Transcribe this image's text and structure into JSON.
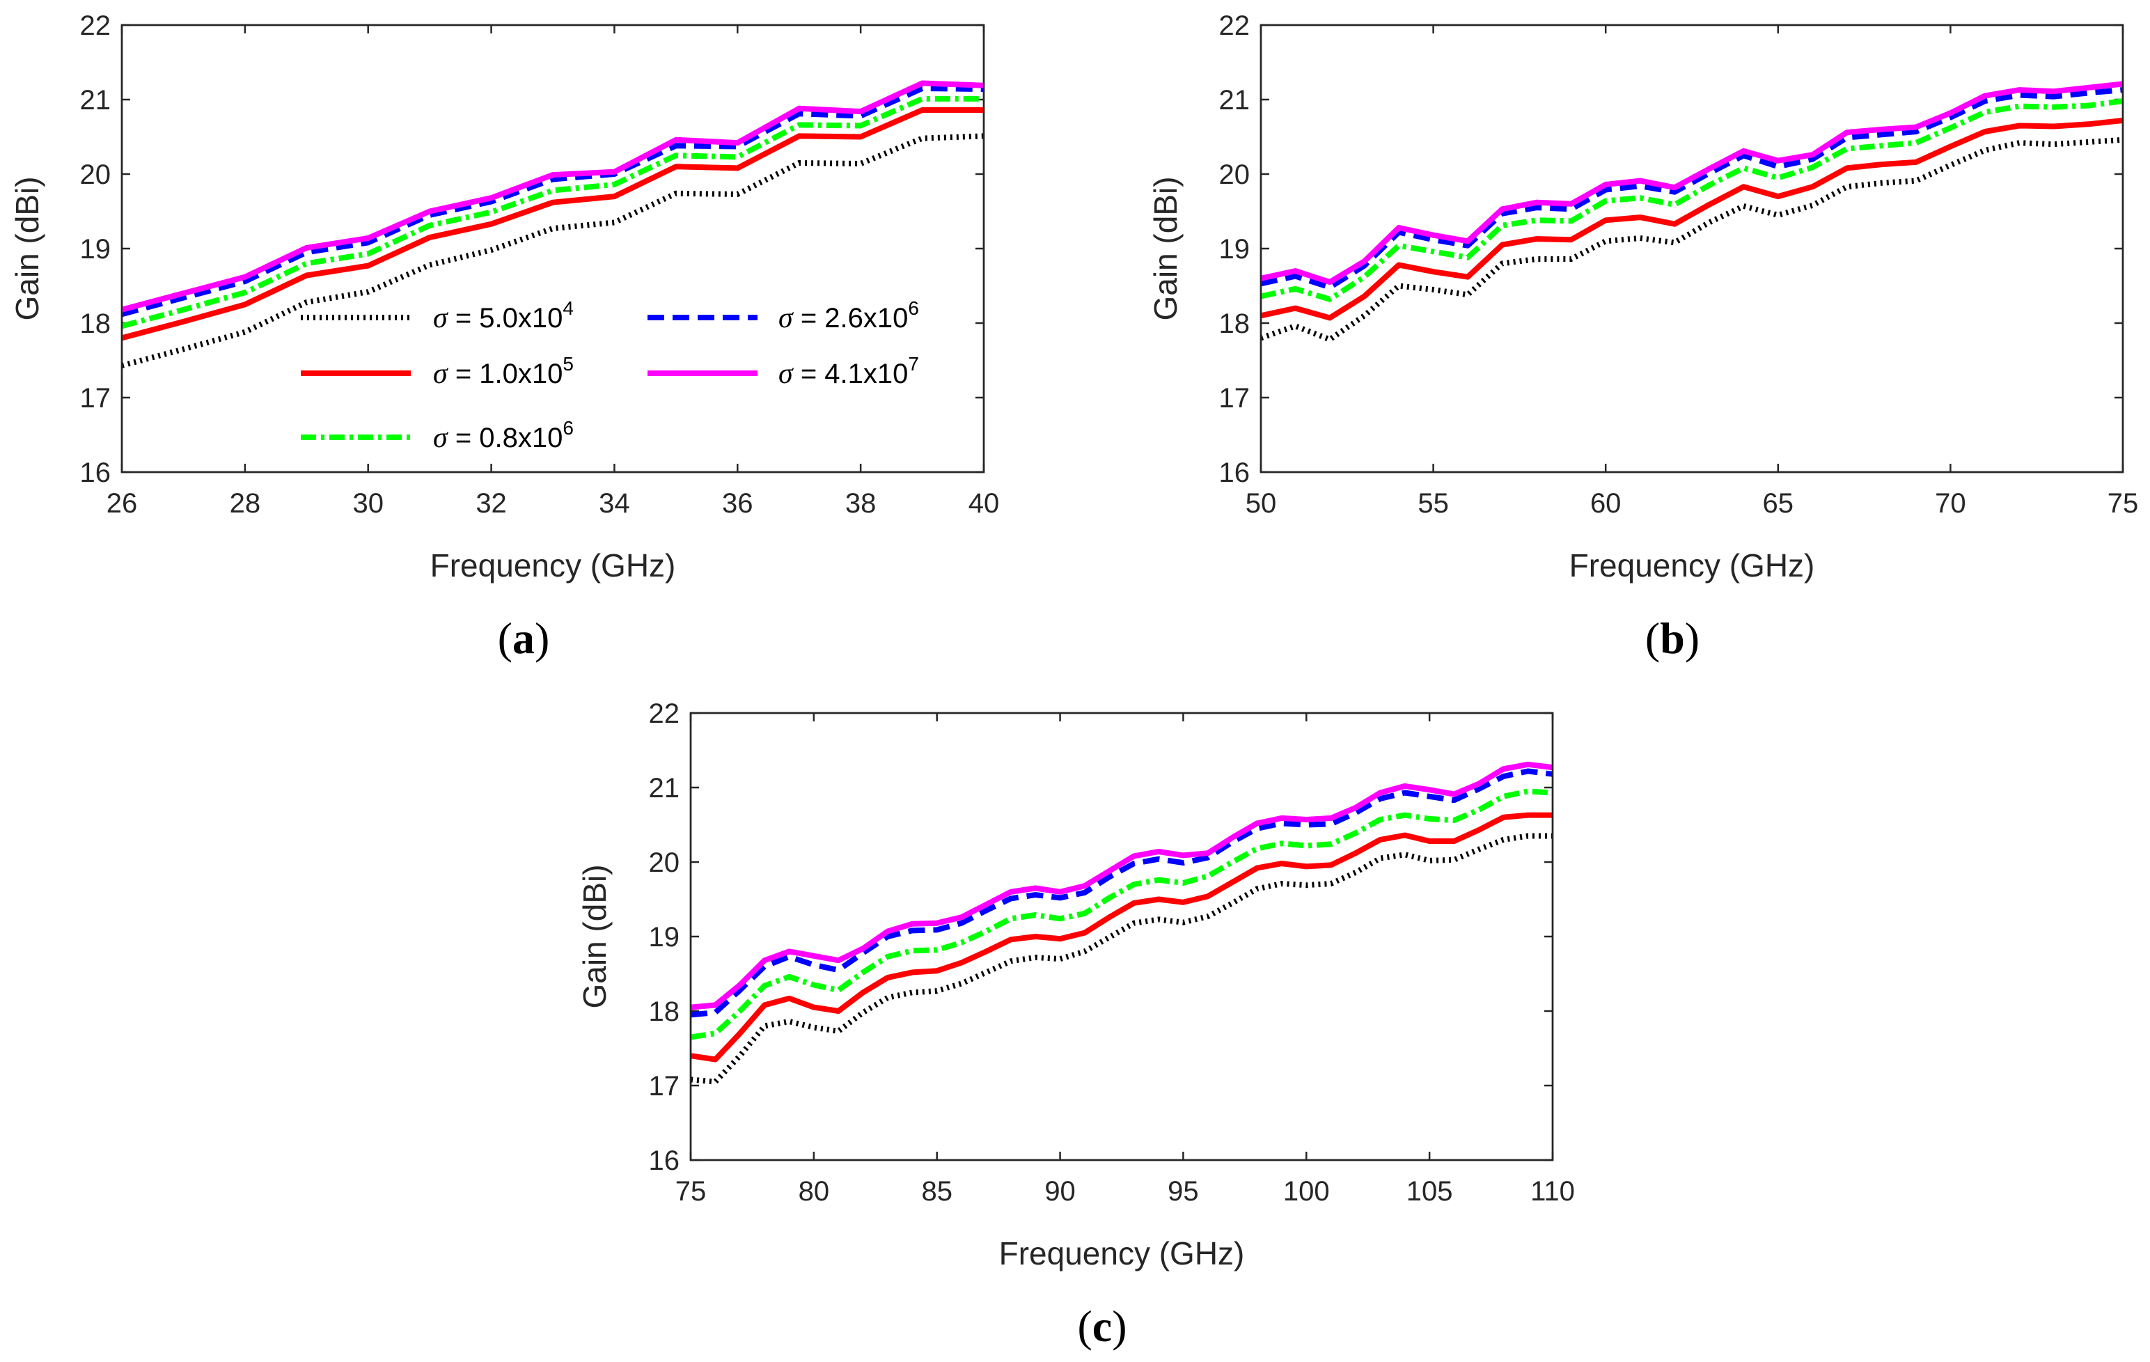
{
  "figure": {
    "legend": {
      "entries": [
        {
          "prefix": "σ",
          "text": " = 5.0x10",
          "exp": "4",
          "series": 0
        },
        {
          "prefix": "σ",
          "text": " = 1.0x10",
          "exp": "5",
          "series": 1
        },
        {
          "prefix": "σ",
          "text": " = 0.8x10",
          "exp": "6",
          "series": 2
        },
        {
          "prefix": "σ",
          "text": " = 2.6x10",
          "exp": "6",
          "series": 3
        },
        {
          "prefix": "σ",
          "text": " = 4.1x10",
          "exp": "7",
          "series": 4
        }
      ]
    }
  },
  "chart_data": [
    {
      "panel": "a",
      "type": "line",
      "xlabel": "Frequency (GHz)",
      "ylabel": "Gain (dBi)",
      "xlim": [
        26,
        40
      ],
      "ylim": [
        16,
        22
      ],
      "xticks": [
        26,
        28,
        30,
        32,
        34,
        36,
        38,
        40
      ],
      "yticks": [
        16,
        17,
        18,
        19,
        20,
        21,
        22
      ],
      "x": [
        26,
        27,
        28,
        29,
        30,
        31,
        32,
        33,
        34,
        35,
        36,
        37,
        38,
        39,
        40
      ],
      "series": [
        {
          "name": "σ = 5.0x10^4",
          "color": "#000000",
          "style": "dotted",
          "values": [
            17.43,
            17.65,
            17.88,
            18.28,
            18.42,
            18.78,
            18.98,
            19.27,
            19.35,
            19.74,
            19.73,
            20.15,
            20.14,
            20.48,
            20.51
          ]
        },
        {
          "name": "σ = 1.0x10^5",
          "color": "#ff0000",
          "style": "solid",
          "values": [
            17.8,
            18.02,
            18.25,
            18.64,
            18.77,
            19.15,
            19.33,
            19.62,
            19.7,
            20.1,
            20.08,
            20.51,
            20.5,
            20.86,
            20.86
          ]
        },
        {
          "name": "σ = 0.8x10^6",
          "color": "#00ff00",
          "style": "dashdot",
          "values": [
            17.96,
            18.18,
            18.41,
            18.8,
            18.93,
            19.31,
            19.49,
            19.78,
            19.86,
            20.25,
            20.23,
            20.66,
            20.65,
            21.01,
            21.01
          ]
        },
        {
          "name": "σ = 2.6x10^6",
          "color": "#0000ff",
          "style": "dashed",
          "values": [
            18.12,
            18.34,
            18.56,
            18.95,
            19.08,
            19.45,
            19.63,
            19.93,
            20.0,
            20.38,
            20.37,
            20.81,
            20.78,
            21.15,
            21.14
          ]
        },
        {
          "name": "σ = 4.1x10^7",
          "color": "#ff00ff",
          "style": "solid",
          "values": [
            18.18,
            18.4,
            18.62,
            19.01,
            19.14,
            19.5,
            19.68,
            19.99,
            20.03,
            20.46,
            20.42,
            20.88,
            20.84,
            21.22,
            21.19
          ]
        }
      ]
    },
    {
      "panel": "b",
      "type": "line",
      "xlabel": "Frequency (GHz)",
      "ylabel": "Gain (dBi)",
      "xlim": [
        50,
        75
      ],
      "ylim": [
        16,
        22
      ],
      "xticks": [
        50,
        55,
        60,
        65,
        70,
        75
      ],
      "yticks": [
        16,
        17,
        18,
        19,
        20,
        21,
        22
      ],
      "x": [
        50,
        51,
        52,
        53,
        54,
        55,
        56,
        57,
        58,
        59,
        60,
        61,
        62,
        63,
        64,
        65,
        66,
        67,
        68,
        69,
        70,
        71,
        72,
        73,
        74,
        75
      ],
      "series": [
        {
          "name": "σ = 5.0x10^4",
          "color": "#000000",
          "style": "dotted",
          "values": [
            17.8,
            17.96,
            17.78,
            18.1,
            18.5,
            18.45,
            18.38,
            18.8,
            18.86,
            18.86,
            19.1,
            19.14,
            19.08,
            19.35,
            19.57,
            19.45,
            19.58,
            19.83,
            19.88,
            19.91,
            20.12,
            20.32,
            20.42,
            20.4,
            20.43,
            20.46
          ]
        },
        {
          "name": "σ = 1.0x10^5",
          "color": "#ff0000",
          "style": "solid",
          "values": [
            18.1,
            18.2,
            18.07,
            18.36,
            18.78,
            18.69,
            18.62,
            19.05,
            19.13,
            19.12,
            19.38,
            19.42,
            19.33,
            19.59,
            19.83,
            19.7,
            19.83,
            20.08,
            20.13,
            20.16,
            20.37,
            20.57,
            20.65,
            20.64,
            20.67,
            20.72
          ]
        },
        {
          "name": "σ = 0.8x10^6",
          "color": "#00ff00",
          "style": "dashdot",
          "values": [
            18.36,
            18.46,
            18.32,
            18.62,
            19.04,
            18.96,
            18.88,
            19.31,
            19.38,
            19.37,
            19.64,
            19.68,
            19.59,
            19.85,
            20.08,
            19.95,
            20.09,
            20.34,
            20.38,
            20.42,
            20.62,
            20.83,
            20.91,
            20.9,
            20.92,
            20.98
          ]
        },
        {
          "name": "σ = 2.6x10^6",
          "color": "#0000ff",
          "style": "dashed",
          "values": [
            18.53,
            18.63,
            18.48,
            18.77,
            19.22,
            19.12,
            19.04,
            19.47,
            19.55,
            19.53,
            19.79,
            19.84,
            19.76,
            20.01,
            20.25,
            20.1,
            20.2,
            20.49,
            20.53,
            20.57,
            20.76,
            20.98,
            21.06,
            21.04,
            21.09,
            21.13
          ]
        },
        {
          "name": "σ = 4.1x10^7",
          "color": "#ff00ff",
          "style": "solid",
          "values": [
            18.6,
            18.7,
            18.55,
            18.83,
            19.28,
            19.18,
            19.1,
            19.53,
            19.62,
            19.6,
            19.86,
            19.91,
            19.82,
            20.07,
            20.31,
            20.18,
            20.26,
            20.56,
            20.6,
            20.63,
            20.82,
            21.05,
            21.13,
            21.11,
            21.16,
            21.21
          ]
        }
      ]
    },
    {
      "panel": "c",
      "type": "line",
      "xlabel": "Frequency (GHz)",
      "ylabel": "Gain (dBi)",
      "xlim": [
        75,
        110
      ],
      "ylim": [
        16,
        22
      ],
      "xticks": [
        75,
        80,
        85,
        90,
        95,
        100,
        105,
        110
      ],
      "yticks": [
        16,
        17,
        18,
        19,
        20,
        21,
        22
      ],
      "x": [
        75,
        76,
        77,
        78,
        79,
        80,
        81,
        82,
        83,
        84,
        85,
        86,
        87,
        88,
        89,
        90,
        91,
        92,
        93,
        94,
        95,
        96,
        97,
        98,
        99,
        100,
        101,
        102,
        103,
        104,
        105,
        106,
        107,
        108,
        109,
        110
      ],
      "series": [
        {
          "name": "σ = 5.0x10^4",
          "color": "#000000",
          "style": "dotted",
          "values": [
            17.08,
            17.05,
            17.4,
            17.8,
            17.86,
            17.78,
            17.73,
            17.98,
            18.18,
            18.25,
            18.27,
            18.37,
            18.52,
            18.67,
            18.72,
            18.7,
            18.8,
            18.99,
            19.18,
            19.23,
            19.19,
            19.27,
            19.45,
            19.64,
            19.71,
            19.69,
            19.71,
            19.86,
            20.05,
            20.1,
            20.02,
            20.03,
            20.17,
            20.3,
            20.35,
            20.35
          ]
        },
        {
          "name": "σ = 1.0x10^5",
          "color": "#ff0000",
          "style": "solid",
          "values": [
            17.4,
            17.35,
            17.7,
            18.08,
            18.17,
            18.05,
            18.0,
            18.25,
            18.45,
            18.52,
            18.54,
            18.65,
            18.8,
            18.96,
            19.0,
            18.97,
            19.05,
            19.26,
            19.45,
            19.5,
            19.46,
            19.54,
            19.73,
            19.92,
            19.98,
            19.94,
            19.96,
            20.12,
            20.3,
            20.36,
            20.28,
            20.28,
            20.43,
            20.6,
            20.63,
            20.63
          ]
        },
        {
          "name": "σ = 0.8x10^6",
          "color": "#00ff00",
          "style": "dashdot",
          "values": [
            17.65,
            17.7,
            18.0,
            18.34,
            18.46,
            18.35,
            18.28,
            18.52,
            18.73,
            18.81,
            18.82,
            18.92,
            19.07,
            19.24,
            19.29,
            19.24,
            19.31,
            19.52,
            19.7,
            19.76,
            19.72,
            19.81,
            20.0,
            20.18,
            20.25,
            20.22,
            20.24,
            20.39,
            20.57,
            20.63,
            20.58,
            20.56,
            20.7,
            20.88,
            20.95,
            20.93
          ]
        },
        {
          "name": "σ = 2.6x10^6",
          "color": "#0000ff",
          "style": "dashed",
          "values": [
            17.95,
            17.98,
            18.28,
            18.6,
            18.73,
            18.62,
            18.55,
            18.78,
            19.0,
            19.08,
            19.09,
            19.18,
            19.35,
            19.51,
            19.56,
            19.52,
            19.59,
            19.8,
            19.98,
            20.04,
            19.99,
            20.06,
            20.27,
            20.45,
            20.52,
            20.5,
            20.51,
            20.66,
            20.85,
            20.93,
            20.88,
            20.83,
            20.98,
            21.15,
            21.22,
            21.18
          ]
        },
        {
          "name": "σ = 4.1x10^7",
          "color": "#ff00ff",
          "style": "solid",
          "values": [
            18.05,
            18.08,
            18.35,
            18.68,
            18.8,
            18.74,
            18.68,
            18.84,
            19.07,
            19.17,
            19.18,
            19.26,
            19.43,
            19.6,
            19.65,
            19.6,
            19.68,
            19.88,
            20.08,
            20.14,
            20.09,
            20.12,
            20.33,
            20.52,
            20.59,
            20.57,
            20.59,
            20.73,
            20.93,
            21.02,
            20.97,
            20.91,
            21.05,
            21.25,
            21.31,
            21.27
          ]
        }
      ]
    }
  ],
  "panel_labels": {
    "a": {
      "open": "(",
      "letter": "a",
      "close": ")"
    },
    "b": {
      "open": "(",
      "letter": "b",
      "close": ")"
    },
    "c": {
      "open": "(",
      "letter": "c",
      "close": ")"
    }
  }
}
